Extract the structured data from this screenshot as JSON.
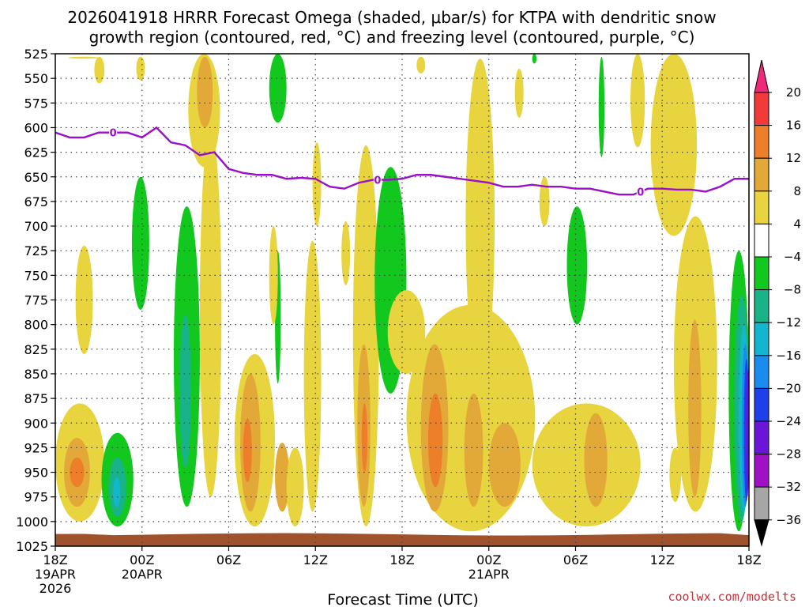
{
  "chart_data": {
    "type": "contour-time-height",
    "title_line1": "2026041918 HRRR Forecast Omega (shaded, μbar/s) for KTPA with dendritic snow",
    "title_line2": "growth region (contoured, red, °C) and freezing level (contoured, purple, °C)",
    "xlabel": "Forecast Time (UTC)",
    "credit": "coolwx.com/modelts",
    "x_range_hours": [
      0,
      48
    ],
    "y_range_mb": [
      525,
      1025
    ],
    "y_ticks": [
      "525",
      "550",
      "575",
      "600",
      "625",
      "650",
      "675",
      "700",
      "725",
      "750",
      "775",
      "800",
      "825",
      "850",
      "875",
      "900",
      "925",
      "950",
      "975",
      "1000",
      "1025"
    ],
    "x_ticks": [
      {
        "hour": 0,
        "label": "18Z",
        "sub1": "19APR",
        "sub2": "2026"
      },
      {
        "hour": 6,
        "label": "00Z",
        "sub1": "20APR",
        "sub2": ""
      },
      {
        "hour": 12,
        "label": "06Z",
        "sub1": "",
        "sub2": ""
      },
      {
        "hour": 18,
        "label": "12Z",
        "sub1": "",
        "sub2": ""
      },
      {
        "hour": 24,
        "label": "18Z",
        "sub1": "",
        "sub2": ""
      },
      {
        "hour": 30,
        "label": "00Z",
        "sub1": "21APR",
        "sub2": ""
      },
      {
        "hour": 36,
        "label": "06Z",
        "sub1": "",
        "sub2": ""
      },
      {
        "hour": 42,
        "label": "12Z",
        "sub1": "",
        "sub2": ""
      },
      {
        "hour": 48,
        "label": "18Z",
        "sub1": "",
        "sub2": ""
      }
    ],
    "colorbar": {
      "labels": [
        "20",
        "16",
        "12",
        "8",
        "4",
        "−4",
        "−8",
        "−12",
        "−16",
        "−20",
        "−24",
        "−28",
        "−32",
        "−36"
      ],
      "bins": [
        {
          "range": ">20",
          "color": "#f0287a"
        },
        {
          "range": "16 to 20",
          "color": "#f23a3a"
        },
        {
          "range": "12 to 16",
          "color": "#ed7e2a"
        },
        {
          "range": "8 to 12",
          "color": "#e3a938"
        },
        {
          "range": "4 to 8",
          "color": "#e8d43f"
        },
        {
          "range": "-4 to 4",
          "color": "#ffffff"
        },
        {
          "range": "-8 to -4",
          "color": "#12c81e"
        },
        {
          "range": "-12 to -8",
          "color": "#18b488"
        },
        {
          "range": "-16 to -12",
          "color": "#12b6cf"
        },
        {
          "range": "-20 to -16",
          "color": "#1a8cf0"
        },
        {
          "range": "-24 to -20",
          "color": "#1f3fe8"
        },
        {
          "range": "-28 to -24",
          "color": "#6a16d8"
        },
        {
          "range": "-32 to -28",
          "color": "#a010c4"
        },
        {
          "range": "-36 to -32",
          "color": "#a6a6a6"
        },
        {
          "range": "<-36",
          "color": "#000000"
        }
      ]
    },
    "freezing_level": {
      "label": "0",
      "color": "#9a10c8",
      "hours": [
        0,
        1,
        2,
        3,
        4,
        5,
        6,
        7,
        8,
        9,
        10,
        11,
        12,
        13,
        14,
        15,
        16,
        17,
        18,
        19,
        20,
        21,
        22,
        23,
        24,
        25,
        26,
        27,
        28,
        29,
        30,
        31,
        32,
        33,
        34,
        35,
        36,
        37,
        38,
        39,
        40,
        41,
        42,
        43,
        44,
        45,
        46,
        47,
        48
      ],
      "mb": [
        605,
        610,
        610,
        605,
        605,
        605,
        610,
        600,
        615,
        618,
        628,
        625,
        642,
        646,
        648,
        648,
        652,
        651,
        652,
        660,
        662,
        656,
        653,
        653,
        652,
        648,
        648,
        650,
        652,
        654,
        656,
        660,
        660,
        658,
        660,
        660,
        662,
        662,
        665,
        668,
        668,
        662,
        662,
        663,
        663,
        665,
        660,
        652,
        652
      ],
      "label_hours": [
        4,
        22.3,
        40.5
      ]
    },
    "terrain": {
      "color": "#a0522d"
    },
    "omega_regions": [
      {
        "bin": "4 to 8",
        "t0": 0.9,
        "t1": 3.0,
        "p_top": 528,
        "p_bot": 530
      },
      {
        "bin": "4 to 8",
        "t0": 2.7,
        "t1": 3.4,
        "p_top": 528,
        "p_bot": 555
      },
      {
        "bin": "4 to 8",
        "t0": 5.6,
        "t1": 6.2,
        "p_top": 528,
        "p_bot": 552
      },
      {
        "bin": "4 to 8",
        "t0": 9.2,
        "t1": 11.4,
        "p_top": 525,
        "p_bot": 640
      },
      {
        "bin": "4 to 8",
        "t0": 10.0,
        "t1": 11.5,
        "p_top": 600,
        "p_bot": 975
      },
      {
        "bin": "8 to 12",
        "t0": 9.8,
        "t1": 10.9,
        "p_top": 528,
        "p_bot": 600
      },
      {
        "bin": "-8 to -4",
        "t0": 14.8,
        "t1": 16.0,
        "p_top": 525,
        "p_bot": 595
      },
      {
        "bin": "4 to 8",
        "t0": 20.6,
        "t1": 22.4,
        "p_top": 618,
        "p_bot": 1005
      },
      {
        "bin": "8 to 12",
        "t0": 20.9,
        "t1": 21.8,
        "p_top": 820,
        "p_bot": 985
      },
      {
        "bin": "12 to 16",
        "t0": 21.2,
        "t1": 21.6,
        "p_top": 880,
        "p_bot": 950
      },
      {
        "bin": "4 to 8",
        "t0": 17.2,
        "t1": 18.4,
        "p_top": 715,
        "p_bot": 990
      },
      {
        "bin": "4 to 8",
        "t0": 17.8,
        "t1": 18.4,
        "p_top": 615,
        "p_bot": 700
      },
      {
        "bin": "-8 to -4",
        "t0": 15.2,
        "t1": 15.6,
        "p_top": 725,
        "p_bot": 860
      },
      {
        "bin": "4 to 8",
        "t0": 14.8,
        "t1": 15.4,
        "p_top": 700,
        "p_bot": 800
      },
      {
        "bin": "4 to 8",
        "t0": 12.4,
        "t1": 15.2,
        "p_top": 830,
        "p_bot": 1005
      },
      {
        "bin": "8 to 12",
        "t0": 12.8,
        "t1": 14.2,
        "p_top": 850,
        "p_bot": 990
      },
      {
        "bin": "12 to 16",
        "t0": 13.0,
        "t1": 13.6,
        "p_top": 895,
        "p_bot": 960
      },
      {
        "bin": "8 to 12",
        "t0": 15.2,
        "t1": 16.2,
        "p_top": 920,
        "p_bot": 990
      },
      {
        "bin": "4 to 8",
        "t0": 16.0,
        "t1": 17.2,
        "p_top": 925,
        "p_bot": 1005
      },
      {
        "bin": "-8 to -4",
        "t0": 5.3,
        "t1": 6.5,
        "p_top": 650,
        "p_bot": 785
      },
      {
        "bin": "-8 to -4",
        "t0": 8.2,
        "t1": 10.0,
        "p_top": 680,
        "p_bot": 985
      },
      {
        "bin": "-12 to -8",
        "t0": 8.6,
        "t1": 9.4,
        "p_top": 790,
        "p_bot": 945
      },
      {
        "bin": "4 to 8",
        "t0": 1.4,
        "t1": 2.6,
        "p_top": 720,
        "p_bot": 830
      },
      {
        "bin": "4 to 8",
        "t0": 0.0,
        "t1": 3.4,
        "p_top": 880,
        "p_bot": 1000
      },
      {
        "bin": "8 to 12",
        "t0": 0.6,
        "t1": 2.4,
        "p_top": 915,
        "p_bot": 985
      },
      {
        "bin": "12 to 16",
        "t0": 1.0,
        "t1": 2.0,
        "p_top": 935,
        "p_bot": 965
      },
      {
        "bin": "-8 to -4",
        "t0": 3.2,
        "t1": 5.4,
        "p_top": 910,
        "p_bot": 1005
      },
      {
        "bin": "-12 to -8",
        "t0": 3.7,
        "t1": 4.9,
        "p_top": 935,
        "p_bot": 995
      },
      {
        "bin": "-16 to -12",
        "t0": 4.0,
        "t1": 4.5,
        "p_top": 955,
        "p_bot": 985
      },
      {
        "bin": "4 to 8",
        "t0": 24.3,
        "t1": 33.2,
        "p_top": 780,
        "p_bot": 1010
      },
      {
        "bin": "8 to 12",
        "t0": 25.3,
        "t1": 27.2,
        "p_top": 820,
        "p_bot": 990
      },
      {
        "bin": "12 to 16",
        "t0": 25.8,
        "t1": 26.8,
        "p_top": 870,
        "p_bot": 965
      },
      {
        "bin": "8 to 12",
        "t0": 28.3,
        "t1": 29.6,
        "p_top": 870,
        "p_bot": 985
      },
      {
        "bin": "8 to 12",
        "t0": 30.0,
        "t1": 32.2,
        "p_top": 900,
        "p_bot": 985
      },
      {
        "bin": "4 to 8",
        "t0": 28.4,
        "t1": 30.4,
        "p_top": 530,
        "p_bot": 860
      },
      {
        "bin": "-8 to -4",
        "t0": 22.1,
        "t1": 24.3,
        "p_top": 640,
        "p_bot": 870
      },
      {
        "bin": "4 to 8",
        "t0": 23.0,
        "t1": 25.6,
        "p_top": 765,
        "p_bot": 850
      },
      {
        "bin": "4 to 8",
        "t0": 33.0,
        "t1": 40.5,
        "p_top": 880,
        "p_bot": 1005
      },
      {
        "bin": "8 to 12",
        "t0": 36.6,
        "t1": 38.2,
        "p_top": 890,
        "p_bot": 985
      },
      {
        "bin": "-8 to -4",
        "t0": 35.4,
        "t1": 36.8,
        "p_top": 680,
        "p_bot": 800
      },
      {
        "bin": "-8 to -4",
        "t0": 37.6,
        "t1": 38.0,
        "p_top": 528,
        "p_bot": 630
      },
      {
        "bin": "4 to 8",
        "t0": 41.2,
        "t1": 44.4,
        "p_top": 525,
        "p_bot": 710
      },
      {
        "bin": "4 to 8",
        "t0": 42.8,
        "t1": 45.8,
        "p_top": 690,
        "p_bot": 990
      },
      {
        "bin": "8 to 12",
        "t0": 43.8,
        "t1": 44.7,
        "p_top": 795,
        "p_bot": 975
      },
      {
        "bin": "4 to 8",
        "t0": 42.5,
        "t1": 43.3,
        "p_top": 925,
        "p_bot": 980
      },
      {
        "bin": "4 to 8",
        "t0": 47.0,
        "t1": 48.0,
        "p_top": 780,
        "p_bot": 860
      },
      {
        "bin": "-8 to -4",
        "t0": 46.6,
        "t1": 48.0,
        "p_top": 725,
        "p_bot": 1010
      },
      {
        "bin": "-12 to -8",
        "t0": 47.0,
        "t1": 48.0,
        "p_top": 770,
        "p_bot": 1000
      },
      {
        "bin": "-16 to -12",
        "t0": 47.3,
        "t1": 48.0,
        "p_top": 800,
        "p_bot": 990
      },
      {
        "bin": "-20 to -16",
        "t0": 47.5,
        "t1": 48.0,
        "p_top": 820,
        "p_bot": 985
      },
      {
        "bin": "-24 to -20",
        "t0": 47.65,
        "t1": 48.0,
        "p_top": 835,
        "p_bot": 980
      },
      {
        "bin": "-28 to -24",
        "t0": 47.8,
        "t1": 48.0,
        "p_top": 845,
        "p_bot": 975
      },
      {
        "bin": "4 to 8",
        "t0": 33.5,
        "t1": 34.2,
        "p_top": 650,
        "p_bot": 700
      },
      {
        "bin": "4 to 8",
        "t0": 31.8,
        "t1": 32.4,
        "p_top": 540,
        "p_bot": 590
      },
      {
        "bin": "4 to 8",
        "t0": 39.8,
        "t1": 40.8,
        "p_top": 525,
        "p_bot": 620
      },
      {
        "bin": "-8 to -4",
        "t0": 33.0,
        "t1": 33.3,
        "p_top": 525,
        "p_bot": 535
      },
      {
        "bin": "4 to 8",
        "t0": 25.0,
        "t1": 25.6,
        "p_top": 528,
        "p_bot": 545
      },
      {
        "bin": "4 to 8",
        "t0": 19.8,
        "t1": 20.4,
        "p_top": 695,
        "p_bot": 760
      }
    ]
  }
}
